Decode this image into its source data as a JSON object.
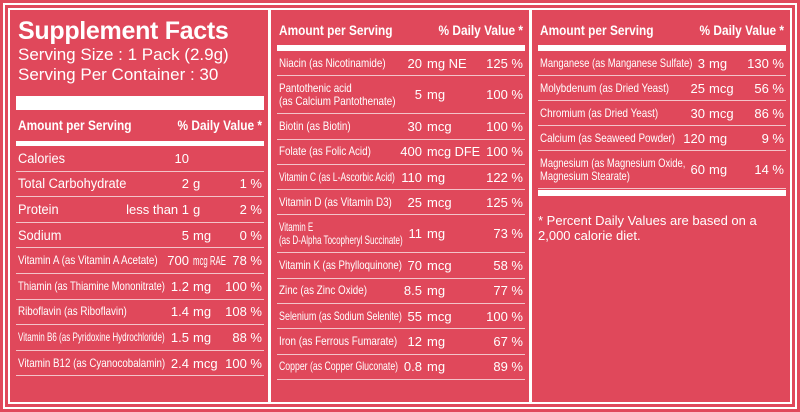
{
  "colors": {
    "background": "#e0485b",
    "text": "#ffffff"
  },
  "title": "Supplement Facts",
  "serving_size": "Serving Size : 1 Pack (2.9g)",
  "servings_per_container": "Serving Per Container : 30",
  "header": {
    "amount": "Amount per Serving",
    "dv": "% Daily Value  *"
  },
  "col1": [
    {
      "name": "Calories",
      "num": "10",
      "unit": "",
      "pct": "",
      "big": true
    },
    {
      "name": "Total Carbohydrate",
      "num": "2",
      "unit": "g",
      "pct": "1 %",
      "big": true
    },
    {
      "name": "Protein",
      "num": "less than 1",
      "unit": "g",
      "pct": "2 %",
      "big": true
    },
    {
      "name": "Sodium",
      "num": "5",
      "unit": "mg",
      "pct": "0 %",
      "big": true
    },
    {
      "name": "Vitamin A (as Vitamin A Acetate)",
      "num": "700",
      "unit": "mcg RAE",
      "pct": "78 %"
    },
    {
      "name": "Thiamin (as Thiamine Mononitrate)",
      "num": "1.2",
      "unit": "mg",
      "pct": "100 %"
    },
    {
      "name": "Riboflavin (as Riboflavin)",
      "num": "1.4",
      "unit": "mg",
      "pct": "108 %"
    },
    {
      "name": "Vitamin B6 (as Pyridoxine Hydrochloride)",
      "num": "1.5",
      "unit": "mg",
      "pct": "88 %"
    },
    {
      "name": "Vitamin B12 (as Cyanocobalamin)",
      "num": "2.4",
      "unit": "mcg",
      "pct": "100 %"
    }
  ],
  "col2": [
    {
      "name": "Niacin (as Nicotinamide)",
      "num": "20",
      "unit": "mg NE",
      "pct": "125 %"
    },
    {
      "name": "Pantothenic acid\n(as Calcium Pantothenate)",
      "num": "5",
      "unit": "mg",
      "pct": "100 %",
      "tall": true
    },
    {
      "name": "Biotin (as Biotin)",
      "num": "30",
      "unit": "mcg",
      "pct": "100 %"
    },
    {
      "name": "Folate (as Folic Acid)",
      "num": "400",
      "unit": "mcg DFE",
      "pct": "100 %"
    },
    {
      "name": "Vitamin C (as L-Ascorbic Acid)",
      "num": "110",
      "unit": "mg",
      "pct": "122 %"
    },
    {
      "name": "Vitamin D (as Vitamin D3)",
      "num": "25",
      "unit": "mcg",
      "pct": "125 %"
    },
    {
      "name": "Vitamin E\n(as D-Alpha Tocopheryl Succinate)",
      "num": "11",
      "unit": "mg",
      "pct": "73 %",
      "tall": true
    },
    {
      "name": "Vitamin K (as Phylloquinone)",
      "num": "70",
      "unit": "mcg",
      "pct": "58 %"
    },
    {
      "name": "Zinc (as Zinc Oxide)",
      "num": "8.5",
      "unit": "mg",
      "pct": "77 %"
    },
    {
      "name": "Selenium (as Sodium Selenite)",
      "num": "55",
      "unit": "mcg",
      "pct": "100 %"
    },
    {
      "name": "Iron (as Ferrous Fumarate)",
      "num": "12",
      "unit": "mg",
      "pct": "67 %"
    },
    {
      "name": "Copper (as Copper Gluconate)",
      "num": "0.8",
      "unit": "mg",
      "pct": "89 %"
    }
  ],
  "col3": [
    {
      "name": "Manganese (as Manganese Sulfate)",
      "num": "3",
      "unit": "mg",
      "pct": "130 %"
    },
    {
      "name": "Molybdenum (as Dried Yeast)",
      "num": "25",
      "unit": "mcg",
      "pct": "56 %"
    },
    {
      "name": "Chromium (as Dried Yeast)",
      "num": "30",
      "unit": "mcg",
      "pct": "86 %"
    },
    {
      "name": "Calcium (as Seaweed Powder)",
      "num": "120",
      "unit": "mg",
      "pct": "9 %"
    },
    {
      "name": "Magnesium (as Magnesium Oxide,\nMagnesium Stearate)",
      "num": "60",
      "unit": "mg",
      "pct": "14 %",
      "tall": true
    }
  ],
  "footnote": "* Percent Daily Values are based on a 2,000 calorie diet."
}
